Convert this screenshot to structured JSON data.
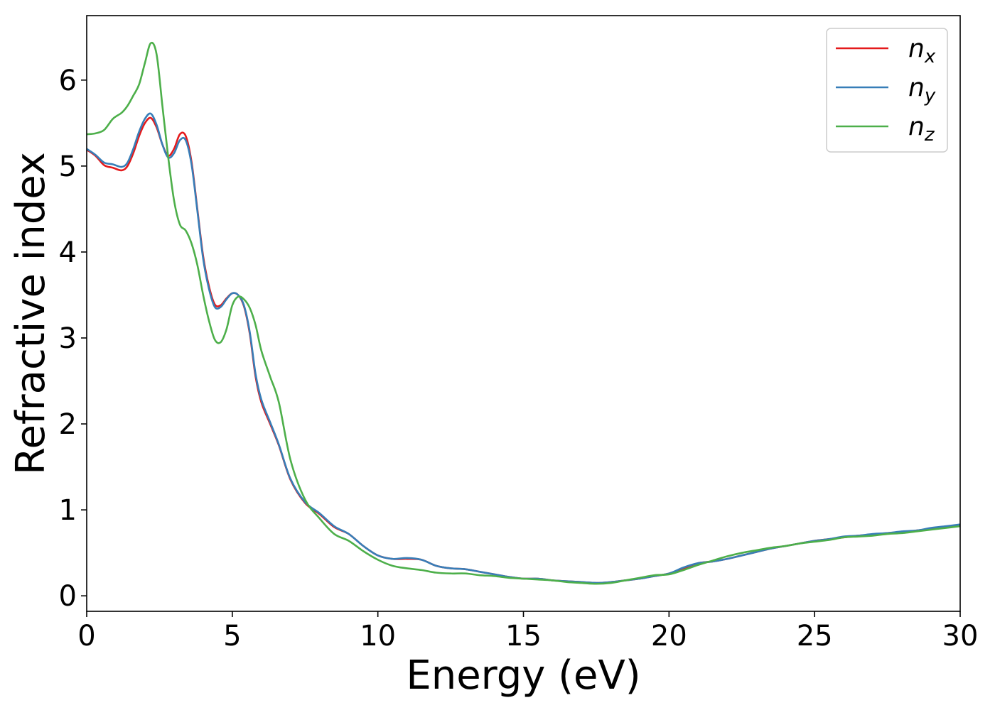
{
  "chart_data": {
    "type": "line",
    "xlabel": "Energy (eV)",
    "ylabel": "Refractive index",
    "xlim": [
      0,
      30
    ],
    "ylim": [
      -0.18,
      6.75
    ],
    "xticks": [
      0,
      5,
      10,
      15,
      20,
      25,
      30
    ],
    "yticks": [
      0,
      1,
      2,
      3,
      4,
      5,
      6
    ],
    "grid": false,
    "legend_position": "top-right",
    "series": [
      {
        "name": "n",
        "subscript": "x",
        "color": "#e41a1c",
        "x": [
          0,
          0.3,
          0.6,
          0.9,
          1.2,
          1.4,
          1.6,
          1.8,
          2.0,
          2.2,
          2.4,
          2.6,
          2.8,
          3.0,
          3.2,
          3.4,
          3.6,
          3.8,
          4.0,
          4.2,
          4.4,
          4.6,
          4.8,
          5.0,
          5.2,
          5.4,
          5.6,
          5.8,
          6.0,
          6.3,
          6.6,
          7.0,
          7.5,
          8.0,
          8.5,
          9.0,
          9.5,
          10.0,
          10.5,
          11.0,
          11.5,
          12.0,
          12.5,
          13.0,
          13.5,
          14.0,
          14.5,
          15.0,
          15.5,
          16.0,
          16.5,
          17.0,
          17.5,
          18.0,
          18.5,
          19.0,
          19.5,
          20.0,
          20.5,
          21.0,
          21.5,
          22.0,
          22.5,
          23.0,
          23.5,
          24.0,
          24.5,
          25.0,
          25.5,
          26.0,
          26.5,
          27.0,
          27.5,
          28.0,
          28.5,
          29.0,
          29.5,
          30.0
        ],
        "y": [
          5.19,
          5.12,
          5.01,
          4.98,
          4.95,
          5.0,
          5.15,
          5.35,
          5.5,
          5.56,
          5.45,
          5.25,
          5.12,
          5.2,
          5.37,
          5.35,
          5.05,
          4.5,
          3.95,
          3.6,
          3.39,
          3.38,
          3.46,
          3.52,
          3.5,
          3.37,
          3.05,
          2.55,
          2.25,
          2.0,
          1.75,
          1.35,
          1.08,
          0.95,
          0.8,
          0.72,
          0.58,
          0.47,
          0.43,
          0.43,
          0.42,
          0.35,
          0.32,
          0.31,
          0.28,
          0.25,
          0.22,
          0.2,
          0.2,
          0.18,
          0.17,
          0.16,
          0.15,
          0.16,
          0.18,
          0.2,
          0.23,
          0.26,
          0.32,
          0.38,
          0.4,
          0.43,
          0.47,
          0.51,
          0.55,
          0.58,
          0.61,
          0.64,
          0.66,
          0.68,
          0.7,
          0.71,
          0.73,
          0.74,
          0.76,
          0.78,
          0.8,
          0.83
        ]
      },
      {
        "name": "n",
        "subscript": "y",
        "color": "#377eb8",
        "x": [
          0,
          0.3,
          0.6,
          0.9,
          1.2,
          1.4,
          1.6,
          1.8,
          2.0,
          2.2,
          2.4,
          2.6,
          2.8,
          3.0,
          3.2,
          3.4,
          3.6,
          3.8,
          4.0,
          4.2,
          4.4,
          4.6,
          4.8,
          5.0,
          5.2,
          5.4,
          5.6,
          5.8,
          6.0,
          6.3,
          6.6,
          7.0,
          7.5,
          8.0,
          8.5,
          9.0,
          9.5,
          10.0,
          10.5,
          11.0,
          11.5,
          12.0,
          12.5,
          13.0,
          13.5,
          14.0,
          14.5,
          15.0,
          15.5,
          16.0,
          16.5,
          17.0,
          17.5,
          18.0,
          18.5,
          19.0,
          19.5,
          20.0,
          20.5,
          21.0,
          21.5,
          22.0,
          22.5,
          23.0,
          23.5,
          24.0,
          24.5,
          25.0,
          25.5,
          26.0,
          26.5,
          27.0,
          27.5,
          28.0,
          28.5,
          29.0,
          29.5,
          30.0
        ],
        "y": [
          5.2,
          5.13,
          5.04,
          5.02,
          4.99,
          5.04,
          5.2,
          5.4,
          5.55,
          5.61,
          5.48,
          5.25,
          5.1,
          5.15,
          5.3,
          5.3,
          5.02,
          4.48,
          3.92,
          3.57,
          3.36,
          3.36,
          3.45,
          3.52,
          3.5,
          3.38,
          3.07,
          2.58,
          2.28,
          2.02,
          1.76,
          1.36,
          1.09,
          0.96,
          0.81,
          0.72,
          0.58,
          0.47,
          0.43,
          0.44,
          0.42,
          0.35,
          0.32,
          0.31,
          0.28,
          0.25,
          0.22,
          0.2,
          0.2,
          0.18,
          0.17,
          0.16,
          0.15,
          0.16,
          0.18,
          0.2,
          0.23,
          0.26,
          0.33,
          0.38,
          0.4,
          0.43,
          0.47,
          0.51,
          0.55,
          0.58,
          0.61,
          0.64,
          0.66,
          0.69,
          0.7,
          0.72,
          0.73,
          0.75,
          0.76,
          0.79,
          0.81,
          0.83
        ]
      },
      {
        "name": "n",
        "subscript": "z",
        "color": "#4daf4a",
        "x": [
          0,
          0.3,
          0.6,
          0.9,
          1.2,
          1.4,
          1.6,
          1.8,
          2.0,
          2.2,
          2.4,
          2.6,
          2.8,
          3.0,
          3.2,
          3.4,
          3.6,
          3.8,
          4.0,
          4.2,
          4.4,
          4.6,
          4.8,
          5.0,
          5.2,
          5.4,
          5.6,
          5.8,
          6.0,
          6.3,
          6.6,
          7.0,
          7.5,
          8.0,
          8.5,
          9.0,
          9.5,
          10.0,
          10.5,
          11.0,
          11.5,
          12.0,
          12.5,
          13.0,
          13.5,
          14.0,
          14.5,
          15.0,
          15.5,
          16.0,
          16.5,
          17.0,
          17.5,
          18.0,
          18.5,
          19.0,
          19.5,
          20.0,
          20.5,
          21.0,
          21.5,
          22.0,
          22.5,
          23.0,
          23.5,
          24.0,
          24.5,
          25.0,
          25.5,
          26.0,
          26.5,
          27.0,
          27.5,
          28.0,
          28.5,
          29.0,
          29.5,
          30.0
        ],
        "y": [
          5.37,
          5.38,
          5.42,
          5.55,
          5.62,
          5.7,
          5.82,
          5.95,
          6.2,
          6.43,
          6.3,
          5.7,
          5.1,
          4.6,
          4.32,
          4.25,
          4.1,
          3.85,
          3.5,
          3.2,
          2.98,
          2.95,
          3.1,
          3.38,
          3.48,
          3.45,
          3.35,
          3.15,
          2.85,
          2.55,
          2.25,
          1.58,
          1.12,
          0.9,
          0.72,
          0.64,
          0.52,
          0.42,
          0.35,
          0.32,
          0.3,
          0.27,
          0.26,
          0.26,
          0.24,
          0.23,
          0.21,
          0.2,
          0.19,
          0.18,
          0.16,
          0.15,
          0.14,
          0.15,
          0.18,
          0.21,
          0.24,
          0.25,
          0.3,
          0.36,
          0.41,
          0.46,
          0.5,
          0.53,
          0.56,
          0.58,
          0.61,
          0.63,
          0.65,
          0.68,
          0.69,
          0.7,
          0.72,
          0.73,
          0.75,
          0.77,
          0.79,
          0.81
        ]
      }
    ]
  }
}
